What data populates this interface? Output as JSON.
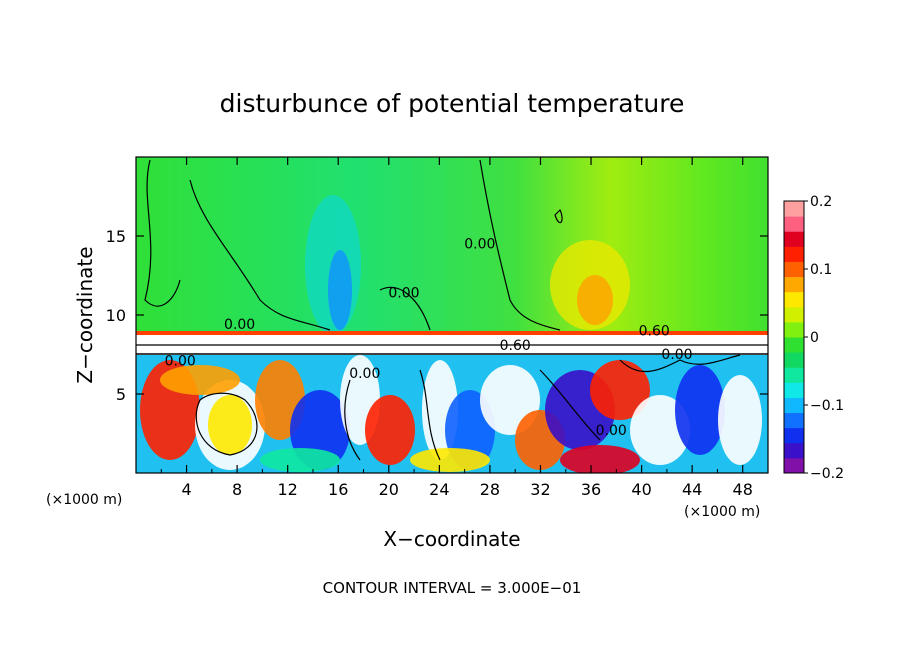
{
  "chart_data": {
    "type": "heatmap",
    "title": "disturbunce of potential temperature",
    "xlabel": "X−coordinate",
    "ylabel": "Z−coordinate",
    "x_unit_left": "(×1000 m)",
    "x_unit_right": "(×1000 m)",
    "xlim": [
      0,
      50
    ],
    "ylim": [
      0,
      20
    ],
    "x_ticks": [
      4,
      8,
      12,
      16,
      20,
      24,
      28,
      32,
      36,
      40,
      44,
      48
    ],
    "x_tick_labels": [
      "4",
      "8",
      "12",
      "16",
      "20",
      "24",
      "28",
      "32",
      "36",
      "40",
      "44",
      "48"
    ],
    "y_ticks": [
      5,
      10,
      15
    ],
    "y_tick_labels": [
      "5",
      "10",
      "15"
    ],
    "colorbar": {
      "range": [
        -0.2,
        0.2
      ],
      "tick_values": [
        0.2,
        0.1,
        0,
        -0.1,
        -0.2
      ],
      "tick_labels": [
        "0.2",
        "0.1",
        "0",
        "−0.1",
        "−0.2"
      ],
      "colors": [
        "#8010a8",
        "#3a10c8",
        "#1030f0",
        "#1070ff",
        "#10b8ff",
        "#10e8e8",
        "#10e8a0",
        "#10d860",
        "#30e030",
        "#80f010",
        "#d0f000",
        "#ffe800",
        "#ffa800",
        "#ff6000",
        "#ff2000",
        "#e00020",
        "#ff6080",
        "#ffa0a0"
      ]
    },
    "contour_labels": [
      {
        "text": "0.00",
        "x": 8.2,
        "y": 9.1
      },
      {
        "text": "0.00",
        "x": 21.2,
        "y": 11.1
      },
      {
        "text": "0.00",
        "x": 27.2,
        "y": 14.2
      },
      {
        "text": "0.60",
        "x": 41.0,
        "y": 8.7
      },
      {
        "text": "0.60",
        "x": 30.0,
        "y": 7.8
      },
      {
        "text": "0.00",
        "x": 3.5,
        "y": 6.8
      },
      {
        "text": "0.00",
        "x": 42.8,
        "y": 7.2
      },
      {
        "text": "0.00",
        "x": 37.6,
        "y": 2.4
      },
      {
        "text": "0.00",
        "x": 18.1,
        "y": 6.0
      }
    ],
    "footnote": "CONTOUR INTERVAL = 3.000E−01"
  }
}
